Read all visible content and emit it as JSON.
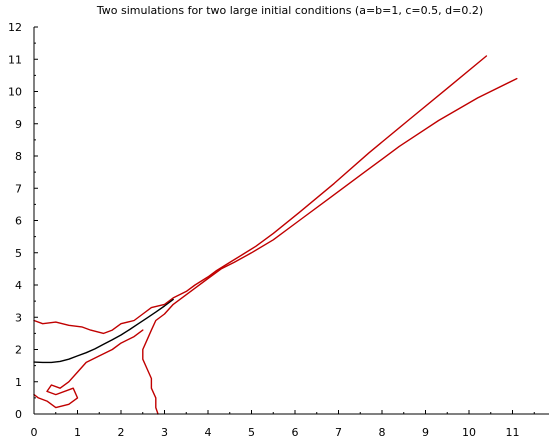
{
  "chart_data": {
    "type": "line",
    "title": "Two simulations for two  large initial conditions (a=b=1, c=0.5, d=0.2)",
    "xlabel": "",
    "ylabel": "",
    "xlim": [
      0,
      12
    ],
    "ylim": [
      0,
      12
    ],
    "x_ticks": [
      0,
      1,
      2,
      3,
      4,
      5,
      6,
      7,
      8,
      9,
      10,
      11,
      12
    ],
    "y_ticks": [
      0,
      1,
      2,
      3,
      4,
      5,
      6,
      7,
      8,
      9,
      10,
      11,
      12
    ],
    "grid": false,
    "colors": {
      "simulation": "#c00000",
      "deterministic": "#000000"
    },
    "series": [
      {
        "points": [
          [
            10.4,
            11.1
          ],
          [
            9.5,
            10.1
          ],
          [
            8.6,
            9.1
          ],
          [
            7.7,
            8.1
          ],
          [
            6.9,
            7.15
          ],
          [
            6.1,
            6.25
          ],
          [
            5.5,
            5.6
          ],
          [
            5.1,
            5.2
          ],
          [
            4.8,
            4.95
          ],
          [
            4.5,
            4.7
          ],
          [
            4.2,
            4.45
          ],
          [
            4.0,
            4.25
          ],
          [
            3.7,
            4.0
          ],
          [
            3.5,
            3.8
          ],
          [
            3.2,
            3.6
          ],
          [
            3.0,
            3.4
          ],
          [
            2.7,
            3.3
          ],
          [
            2.5,
            3.1
          ],
          [
            2.3,
            2.9
          ],
          [
            2.0,
            2.8
          ],
          [
            1.8,
            2.6
          ],
          [
            1.6,
            2.5
          ],
          [
            1.3,
            2.6
          ],
          [
            1.1,
            2.7
          ],
          [
            0.8,
            2.75
          ],
          [
            0.5,
            2.85
          ],
          [
            0.2,
            2.8
          ],
          [
            0.0,
            2.9
          ]
        ]
      },
      {
        "points": [
          [
            11.1,
            10.4
          ],
          [
            10.2,
            9.8
          ],
          [
            9.3,
            9.1
          ],
          [
            8.4,
            8.3
          ],
          [
            7.6,
            7.5
          ],
          [
            6.8,
            6.7
          ],
          [
            6.1,
            6.0
          ],
          [
            5.5,
            5.4
          ],
          [
            5.0,
            5.0
          ],
          [
            4.6,
            4.7
          ],
          [
            4.3,
            4.5
          ],
          [
            4.0,
            4.2
          ],
          [
            3.7,
            3.9
          ],
          [
            3.4,
            3.6
          ],
          [
            3.2,
            3.4
          ],
          [
            3.0,
            3.1
          ],
          [
            2.8,
            2.9
          ],
          [
            2.7,
            2.6
          ],
          [
            2.6,
            2.3
          ],
          [
            2.5,
            2.0
          ],
          [
            2.5,
            1.7
          ],
          [
            2.6,
            1.4
          ],
          [
            2.7,
            1.1
          ],
          [
            2.7,
            0.8
          ],
          [
            2.8,
            0.5
          ],
          [
            2.8,
            0.2
          ],
          [
            2.85,
            0.0
          ]
        ]
      },
      {
        "points": [
          [
            2.5,
            2.6
          ],
          [
            2.3,
            2.4
          ],
          [
            2.0,
            2.2
          ],
          [
            1.8,
            2.0
          ],
          [
            1.5,
            1.8
          ],
          [
            1.2,
            1.6
          ],
          [
            1.0,
            1.3
          ],
          [
            0.8,
            1.0
          ],
          [
            0.6,
            0.8
          ],
          [
            0.4,
            0.9
          ],
          [
            0.3,
            0.7
          ],
          [
            0.5,
            0.6
          ],
          [
            0.9,
            0.8
          ],
          [
            1.0,
            0.5
          ],
          [
            0.8,
            0.3
          ],
          [
            0.5,
            0.2
          ],
          [
            0.3,
            0.4
          ],
          [
            0.1,
            0.5
          ],
          [
            0.0,
            0.6
          ]
        ]
      },
      {
        "points": [
          [
            0.0,
            1.61
          ],
          [
            0.2,
            1.6
          ],
          [
            0.4,
            1.6
          ],
          [
            0.6,
            1.63
          ],
          [
            0.8,
            1.7
          ],
          [
            1.0,
            1.8
          ],
          [
            1.2,
            1.9
          ],
          [
            1.4,
            2.02
          ],
          [
            1.6,
            2.16
          ],
          [
            1.8,
            2.3
          ],
          [
            2.0,
            2.45
          ],
          [
            2.2,
            2.62
          ],
          [
            2.4,
            2.8
          ],
          [
            2.6,
            2.98
          ],
          [
            2.8,
            3.16
          ],
          [
            3.0,
            3.35
          ],
          [
            3.2,
            3.55
          ]
        ]
      }
    ]
  }
}
